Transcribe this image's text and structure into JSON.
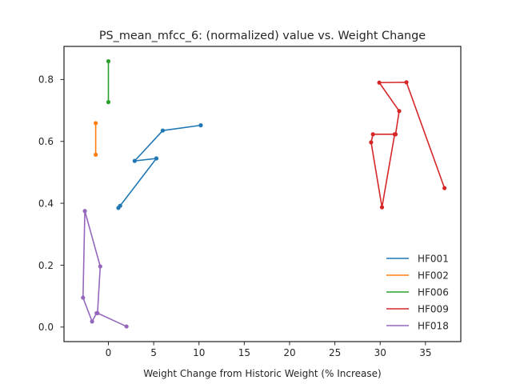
{
  "chart_data": {
    "type": "line",
    "title": "PS_mean_mfcc_6: (normalized) value vs. Weight Change",
    "xlabel": "Weight Change from Historic Weight (% Increase)",
    "ylabel": "",
    "xlim": [
      -4.9,
      38.9
    ],
    "ylim": [
      -0.047,
      0.907
    ],
    "xticks": [
      0,
      5,
      10,
      15,
      20,
      25,
      30,
      35
    ],
    "yticks": [
      0.0,
      0.2,
      0.4,
      0.6,
      0.8
    ],
    "xtick_labels": [
      "0",
      "5",
      "10",
      "15",
      "20",
      "25",
      "30",
      "35"
    ],
    "ytick_labels": [
      "0.0",
      "0.2",
      "0.4",
      "0.6",
      "0.8"
    ],
    "grid": false,
    "legend_position": "lower-right",
    "series": [
      {
        "name": "HF001",
        "color": "#1f77b4",
        "x": [
          1.1,
          1.3,
          5.3,
          2.9,
          6.0,
          10.2
        ],
        "y": [
          0.385,
          0.392,
          0.545,
          0.537,
          0.635,
          0.652
        ]
      },
      {
        "name": "HF002",
        "color": "#ff7f0e",
        "x": [
          -1.4,
          -1.4
        ],
        "y": [
          0.557,
          0.659
        ]
      },
      {
        "name": "HF006",
        "color": "#2ca02c",
        "x": [
          0.0,
          0.0
        ],
        "y": [
          0.727,
          0.859
        ]
      },
      {
        "name": "HF009",
        "color": "#d62728",
        "x": [
          37.1,
          32.9,
          29.9,
          32.1,
          31.7,
          29.2,
          29.0,
          30.2,
          31.6
        ],
        "y": [
          0.449,
          0.791,
          0.79,
          0.698,
          0.623,
          0.623,
          0.597,
          0.387,
          0.623
        ]
      },
      {
        "name": "HF018",
        "color": "#9467bd",
        "x": [
          2.0,
          -1.2,
          -0.9,
          -2.6,
          -2.8,
          -1.8,
          -1.3
        ],
        "y": [
          0.002,
          0.045,
          0.196,
          0.375,
          0.095,
          0.018,
          0.045
        ]
      }
    ]
  }
}
